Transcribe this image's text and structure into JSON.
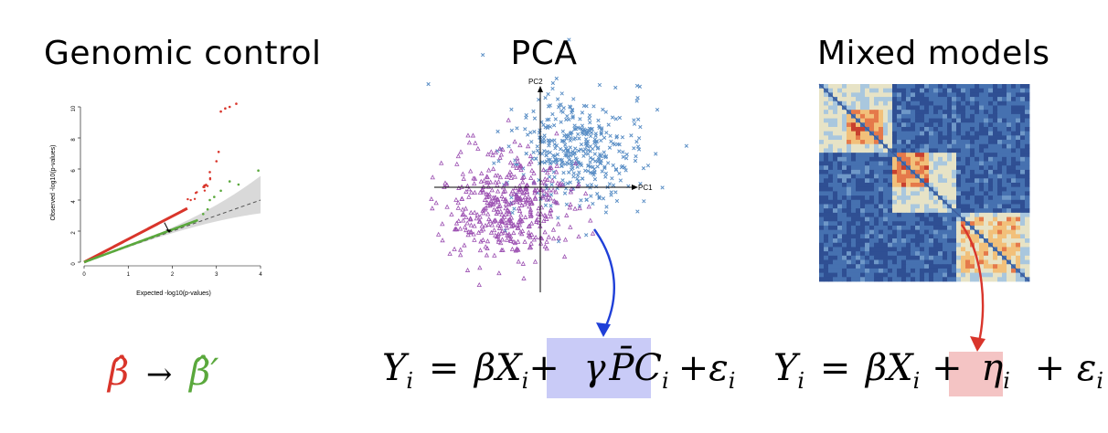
{
  "panels": {
    "gc": {
      "title": "Genomic control",
      "qq": {
        "x_label": "Expected -log10(p-values)",
        "y_label": "Observed -log10(p-values)",
        "x_ticks": [
          "0",
          "1",
          "2",
          "3",
          "4"
        ],
        "y_ticks": [
          "0",
          "2",
          "4",
          "6",
          "8",
          "10"
        ],
        "colors": {
          "inflated": "#d9352b",
          "corrected": "#5aa83c",
          "band": "#cfcfcf"
        }
      },
      "formula": {
        "beta": "β̂",
        "arrow": "→",
        "beta_prime": "β̂′"
      }
    },
    "pca": {
      "title": "PCA",
      "axes": {
        "x": "PC1",
        "y": "PC2"
      },
      "colors": {
        "group_a": "#5b8fc6",
        "group_b": "#9b4fb1",
        "arrow": "#1f3fd8",
        "highlight": "#c9cbf7"
      },
      "formula": {
        "lhs": "Y",
        "sub": "i",
        "eq": "=",
        "beta": "β",
        "x": "X",
        "plus1": "+",
        "gamma": "γ",
        "pc": "P̄C",
        "plus2": "+",
        "eps": "ε"
      }
    },
    "mm": {
      "title": "Mixed models",
      "colors": {
        "arrow": "#d9352b",
        "highlight": "#f4c4c4"
      },
      "formula": {
        "lhs": "Y",
        "sub": "i",
        "eq": "=",
        "beta": "β",
        "x": "X",
        "plus1": "+",
        "eta": "η",
        "plus2": "+",
        "eps": "ε"
      }
    }
  }
}
